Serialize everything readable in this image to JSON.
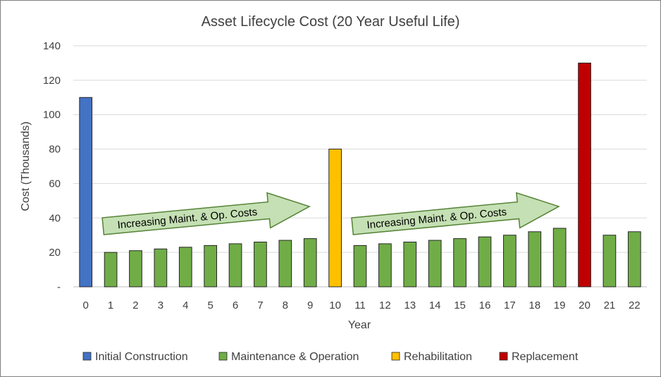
{
  "chart_data": {
    "type": "bar",
    "title": "Asset Lifecycle Cost (20 Year Useful Life)",
    "xlabel": "Year",
    "ylabel": "Cost (Thousands)",
    "ylim": [
      0,
      140
    ],
    "ytick_labels": [
      "-",
      "20",
      "40",
      "60",
      "80",
      "100",
      "120",
      "140"
    ],
    "ytick_values": [
      0,
      20,
      40,
      60,
      80,
      100,
      120,
      140
    ],
    "grid": true,
    "legend_position": "bottom",
    "categories": [
      "0",
      "1",
      "2",
      "3",
      "4",
      "5",
      "6",
      "7",
      "8",
      "9",
      "10",
      "11",
      "12",
      "13",
      "14",
      "15",
      "16",
      "17",
      "18",
      "19",
      "20",
      "21",
      "22"
    ],
    "values": [
      110,
      20,
      21,
      22,
      23,
      24,
      25,
      26,
      27,
      28,
      80,
      24,
      25,
      26,
      27,
      28,
      29,
      30,
      32,
      34,
      130,
      30,
      32
    ],
    "bar_series": [
      0,
      1,
      1,
      1,
      1,
      1,
      1,
      1,
      1,
      1,
      2,
      1,
      1,
      1,
      1,
      1,
      1,
      1,
      1,
      1,
      3,
      1,
      1
    ],
    "series": [
      {
        "name": "Initial Construction",
        "color": "#4472c4"
      },
      {
        "name": "Maintenance & Operation",
        "color": "#70ad47"
      },
      {
        "name": "Rehabilitation",
        "color": "#ffc000"
      },
      {
        "name": "Replacement",
        "color": "#c00000"
      }
    ],
    "annotations": [
      {
        "text": "Increasing Maint. & Op. Costs",
        "from_year": 1,
        "to_year": 9
      },
      {
        "text": "Increasing Maint. & Op. Costs",
        "from_year": 11,
        "to_year": 19
      }
    ]
  }
}
